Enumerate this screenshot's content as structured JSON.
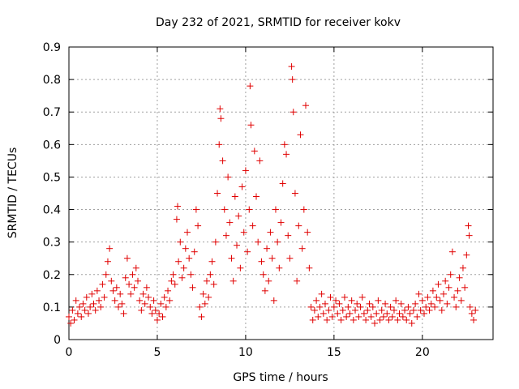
{
  "chart_data": {
    "type": "scatter",
    "title": "Day 232 of 2021, SRMTID for receiver kokv",
    "xlabel": "GPS time / hours",
    "ylabel": "SRMTID / TECUs",
    "xlim": [
      0,
      24
    ],
    "ylim": [
      0,
      0.9
    ],
    "xticks": [
      0,
      5,
      10,
      15,
      20
    ],
    "xtick_labels": [
      "0",
      "5",
      "10",
      "15",
      "20"
    ],
    "yticks": [
      0,
      0.1,
      0.2,
      0.3,
      0.4,
      0.5,
      0.6,
      0.7,
      0.8,
      0.9
    ],
    "ytick_labels": [
      "0",
      "0.1",
      "0.2",
      "0.3",
      "0.4",
      "0.5",
      "0.6",
      "0.7",
      "0.8",
      "0.9"
    ],
    "grid": true,
    "marker": "+",
    "color": "#e00000",
    "series": [
      {
        "name": "SRMTID",
        "points": [
          [
            0.0,
            0.07
          ],
          [
            0.1,
            0.05
          ],
          [
            0.2,
            0.09
          ],
          [
            0.3,
            0.06
          ],
          [
            0.4,
            0.12
          ],
          [
            0.5,
            0.08
          ],
          [
            0.6,
            0.1
          ],
          [
            0.7,
            0.07
          ],
          [
            0.8,
            0.11
          ],
          [
            0.9,
            0.09
          ],
          [
            1.0,
            0.13
          ],
          [
            1.1,
            0.08
          ],
          [
            1.2,
            0.1
          ],
          [
            1.3,
            0.14
          ],
          [
            1.4,
            0.11
          ],
          [
            1.5,
            0.09
          ],
          [
            1.6,
            0.15
          ],
          [
            1.7,
            0.12
          ],
          [
            1.8,
            0.1
          ],
          [
            1.9,
            0.17
          ],
          [
            2.0,
            0.13
          ],
          [
            2.1,
            0.2
          ],
          [
            2.2,
            0.24
          ],
          [
            2.3,
            0.28
          ],
          [
            2.4,
            0.18
          ],
          [
            2.5,
            0.15
          ],
          [
            2.6,
            0.12
          ],
          [
            2.7,
            0.16
          ],
          [
            2.8,
            0.1
          ],
          [
            2.9,
            0.14
          ],
          [
            3.0,
            0.11
          ],
          [
            3.1,
            0.08
          ],
          [
            3.2,
            0.19
          ],
          [
            3.3,
            0.25
          ],
          [
            3.4,
            0.17
          ],
          [
            3.5,
            0.14
          ],
          [
            3.6,
            0.2
          ],
          [
            3.7,
            0.16
          ],
          [
            3.8,
            0.22
          ],
          [
            3.9,
            0.18
          ],
          [
            4.0,
            0.12
          ],
          [
            4.1,
            0.09
          ],
          [
            4.2,
            0.14
          ],
          [
            4.3,
            0.11
          ],
          [
            4.4,
            0.16
          ],
          [
            4.5,
            0.13
          ],
          [
            4.6,
            0.1
          ],
          [
            4.7,
            0.08
          ],
          [
            4.8,
            0.12
          ],
          [
            4.9,
            0.09
          ],
          [
            5.0,
            0.06
          ],
          [
            5.1,
            0.08
          ],
          [
            5.2,
            0.11
          ],
          [
            5.3,
            0.07
          ],
          [
            5.4,
            0.13
          ],
          [
            5.5,
            0.1
          ],
          [
            5.6,
            0.15
          ],
          [
            5.7,
            0.12
          ],
          [
            5.8,
            0.18
          ],
          [
            5.9,
            0.2
          ],
          [
            6.0,
            0.17
          ],
          [
            6.1,
            0.37
          ],
          [
            6.15,
            0.41
          ],
          [
            6.2,
            0.24
          ],
          [
            6.3,
            0.3
          ],
          [
            6.4,
            0.19
          ],
          [
            6.5,
            0.22
          ],
          [
            6.6,
            0.28
          ],
          [
            6.7,
            0.33
          ],
          [
            6.8,
            0.25
          ],
          [
            6.9,
            0.2
          ],
          [
            7.0,
            0.16
          ],
          [
            7.1,
            0.27
          ],
          [
            7.2,
            0.4
          ],
          [
            7.3,
            0.35
          ],
          [
            7.4,
            0.1
          ],
          [
            7.5,
            0.07
          ],
          [
            7.6,
            0.14
          ],
          [
            7.7,
            0.11
          ],
          [
            7.8,
            0.18
          ],
          [
            7.9,
            0.13
          ],
          [
            8.0,
            0.2
          ],
          [
            8.1,
            0.24
          ],
          [
            8.2,
            0.17
          ],
          [
            8.3,
            0.3
          ],
          [
            8.4,
            0.45
          ],
          [
            8.5,
            0.6
          ],
          [
            8.55,
            0.71
          ],
          [
            8.6,
            0.68
          ],
          [
            8.7,
            0.55
          ],
          [
            8.8,
            0.4
          ],
          [
            8.9,
            0.32
          ],
          [
            9.0,
            0.5
          ],
          [
            9.1,
            0.36
          ],
          [
            9.2,
            0.25
          ],
          [
            9.3,
            0.18
          ],
          [
            9.4,
            0.44
          ],
          [
            9.5,
            0.29
          ],
          [
            9.6,
            0.38
          ],
          [
            9.7,
            0.22
          ],
          [
            9.8,
            0.47
          ],
          [
            9.9,
            0.33
          ],
          [
            10.0,
            0.52
          ],
          [
            10.1,
            0.27
          ],
          [
            10.2,
            0.4
          ],
          [
            10.25,
            0.78
          ],
          [
            10.3,
            0.66
          ],
          [
            10.4,
            0.35
          ],
          [
            10.5,
            0.58
          ],
          [
            10.6,
            0.44
          ],
          [
            10.7,
            0.3
          ],
          [
            10.8,
            0.55
          ],
          [
            10.9,
            0.24
          ],
          [
            11.0,
            0.2
          ],
          [
            11.1,
            0.15
          ],
          [
            11.2,
            0.28
          ],
          [
            11.3,
            0.18
          ],
          [
            11.4,
            0.33
          ],
          [
            11.5,
            0.25
          ],
          [
            11.6,
            0.12
          ],
          [
            11.7,
            0.4
          ],
          [
            11.8,
            0.3
          ],
          [
            11.9,
            0.22
          ],
          [
            12.0,
            0.36
          ],
          [
            12.1,
            0.48
          ],
          [
            12.2,
            0.6
          ],
          [
            12.3,
            0.57
          ],
          [
            12.4,
            0.32
          ],
          [
            12.5,
            0.25
          ],
          [
            12.6,
            0.84
          ],
          [
            12.65,
            0.8
          ],
          [
            12.7,
            0.7
          ],
          [
            12.8,
            0.45
          ],
          [
            12.9,
            0.18
          ],
          [
            13.0,
            0.35
          ],
          [
            13.1,
            0.63
          ],
          [
            13.2,
            0.28
          ],
          [
            13.3,
            0.4
          ],
          [
            13.4,
            0.72
          ],
          [
            13.5,
            0.33
          ],
          [
            13.6,
            0.22
          ],
          [
            13.7,
            0.1
          ],
          [
            13.8,
            0.06
          ],
          [
            13.9,
            0.09
          ],
          [
            14.0,
            0.12
          ],
          [
            14.1,
            0.07
          ],
          [
            14.2,
            0.1
          ],
          [
            14.3,
            0.14
          ],
          [
            14.4,
            0.08
          ],
          [
            14.5,
            0.11
          ],
          [
            14.6,
            0.06
          ],
          [
            14.7,
            0.09
          ],
          [
            14.8,
            0.13
          ],
          [
            14.9,
            0.07
          ],
          [
            15.0,
            0.1
          ],
          [
            15.1,
            0.12
          ],
          [
            15.2,
            0.08
          ],
          [
            15.3,
            0.11
          ],
          [
            15.4,
            0.06
          ],
          [
            15.5,
            0.09
          ],
          [
            15.6,
            0.13
          ],
          [
            15.7,
            0.07
          ],
          [
            15.8,
            0.1
          ],
          [
            15.9,
            0.08
          ],
          [
            16.0,
            0.12
          ],
          [
            16.1,
            0.06
          ],
          [
            16.2,
            0.09
          ],
          [
            16.3,
            0.11
          ],
          [
            16.4,
            0.07
          ],
          [
            16.5,
            0.1
          ],
          [
            16.6,
            0.13
          ],
          [
            16.7,
            0.08
          ],
          [
            16.8,
            0.06
          ],
          [
            16.9,
            0.09
          ],
          [
            17.0,
            0.11
          ],
          [
            17.1,
            0.07
          ],
          [
            17.2,
            0.1
          ],
          [
            17.3,
            0.05
          ],
          [
            17.4,
            0.08
          ],
          [
            17.5,
            0.12
          ],
          [
            17.6,
            0.06
          ],
          [
            17.7,
            0.09
          ],
          [
            17.8,
            0.07
          ],
          [
            17.9,
            0.11
          ],
          [
            18.0,
            0.08
          ],
          [
            18.1,
            0.06
          ],
          [
            18.2,
            0.1
          ],
          [
            18.3,
            0.07
          ],
          [
            18.4,
            0.09
          ],
          [
            18.5,
            0.12
          ],
          [
            18.6,
            0.06
          ],
          [
            18.7,
            0.08
          ],
          [
            18.8,
            0.11
          ],
          [
            18.9,
            0.07
          ],
          [
            19.0,
            0.09
          ],
          [
            19.1,
            0.06
          ],
          [
            19.2,
            0.1
          ],
          [
            19.3,
            0.08
          ],
          [
            19.4,
            0.05
          ],
          [
            19.5,
            0.09
          ],
          [
            19.6,
            0.11
          ],
          [
            19.7,
            0.07
          ],
          [
            19.8,
            0.14
          ],
          [
            19.9,
            0.09
          ],
          [
            20.0,
            0.12
          ],
          [
            20.1,
            0.08
          ],
          [
            20.2,
            0.1
          ],
          [
            20.3,
            0.13
          ],
          [
            20.4,
            0.09
          ],
          [
            20.5,
            0.11
          ],
          [
            20.6,
            0.15
          ],
          [
            20.7,
            0.1
          ],
          [
            20.8,
            0.13
          ],
          [
            20.9,
            0.17
          ],
          [
            21.0,
            0.12
          ],
          [
            21.1,
            0.09
          ],
          [
            21.2,
            0.14
          ],
          [
            21.3,
            0.18
          ],
          [
            21.4,
            0.11
          ],
          [
            21.5,
            0.16
          ],
          [
            21.6,
            0.2
          ],
          [
            21.7,
            0.27
          ],
          [
            21.8,
            0.13
          ],
          [
            21.9,
            0.1
          ],
          [
            22.0,
            0.15
          ],
          [
            22.1,
            0.19
          ],
          [
            22.2,
            0.12
          ],
          [
            22.3,
            0.22
          ],
          [
            22.4,
            0.16
          ],
          [
            22.5,
            0.26
          ],
          [
            22.6,
            0.35
          ],
          [
            22.65,
            0.32
          ],
          [
            22.7,
            0.1
          ],
          [
            22.8,
            0.08
          ],
          [
            22.9,
            0.06
          ],
          [
            23.0,
            0.09
          ]
        ]
      }
    ]
  }
}
